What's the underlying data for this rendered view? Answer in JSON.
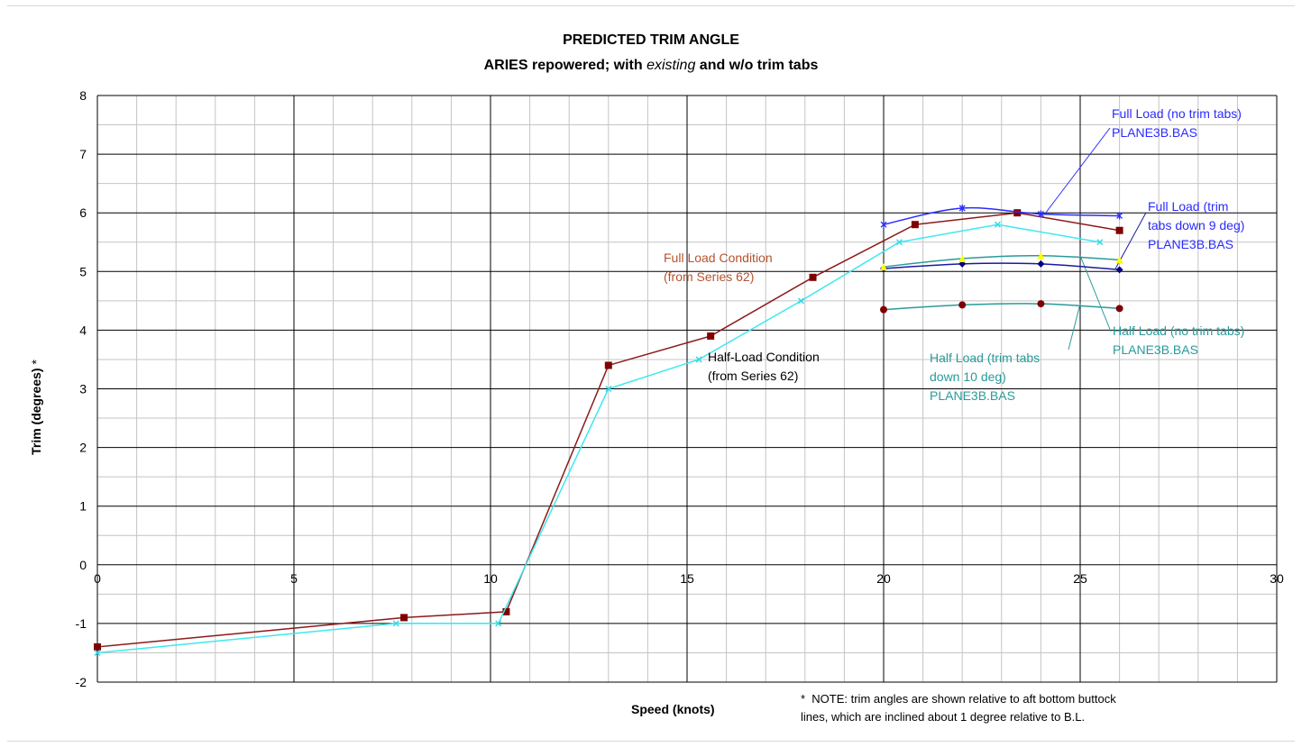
{
  "chart_data": {
    "type": "line",
    "title": "PREDICTED TRIM ANGLE",
    "subtitle": {
      "before": "ARIES repowered; with ",
      "italic": "existing",
      "after": " and w/o trim tabs"
    },
    "xlabel": "Speed (knots)",
    "ylabel": "Trim (degrees)",
    "ylabel_suffix": "*",
    "xlim": [
      0,
      30
    ],
    "ylim": [
      -2,
      8
    ],
    "xticks": [
      "0",
      "5",
      "10",
      "15",
      "20",
      "25",
      "30"
    ],
    "yticks": [
      "-2",
      "-1",
      "0",
      "1",
      "2",
      "3",
      "4",
      "5",
      "6",
      "7",
      "8"
    ],
    "grid": true,
    "note": "*  NOTE: trim angles are shown relative to aft bottom buttock\nlines, which are inclined about 1 degree relative to B.L.",
    "series": [
      {
        "key": "full_s62",
        "color": "#8b1a1a",
        "marker_color": "#800000",
        "marker": "square",
        "smooth": false,
        "x": [
          0,
          7.8,
          10.4,
          13.0,
          15.6,
          18.2,
          20.8,
          23.4,
          26.0
        ],
        "y": [
          -1.4,
          -0.9,
          -0.8,
          3.4,
          3.9,
          4.9,
          5.8,
          6.0,
          5.7
        ]
      },
      {
        "key": "half_s62",
        "color": "#3ee8f0",
        "marker_color": "#2fd9e6",
        "marker": "x",
        "smooth": false,
        "x": [
          0,
          7.6,
          10.2,
          13.0,
          15.3,
          17.9,
          20.4,
          22.9,
          25.5
        ],
        "y": [
          -1.5,
          -1.0,
          -1.0,
          3.0,
          3.5,
          4.5,
          5.5,
          5.8,
          5.5
        ]
      },
      {
        "key": "full_no_tabs",
        "color": "#2b2bff",
        "marker_color": "#2b2bff",
        "marker": "asterisk",
        "smooth": true,
        "x": [
          20,
          22,
          24,
          26
        ],
        "y": [
          5.8,
          6.08,
          5.98,
          5.95
        ]
      },
      {
        "key": "full_tabs9",
        "color": "#1a1aa0",
        "marker_color": "#000080",
        "marker": "diamond",
        "smooth": true,
        "x": [
          20,
          22,
          24,
          26
        ],
        "y": [
          5.05,
          5.13,
          5.13,
          5.03
        ]
      },
      {
        "key": "half_no_tabs",
        "color": "#2a9a9a",
        "marker_color": "#ffff00",
        "marker": "triangle",
        "smooth": true,
        "x": [
          20,
          22,
          24,
          26
        ],
        "y": [
          5.08,
          5.22,
          5.27,
          5.2
        ]
      },
      {
        "key": "half_tabs10",
        "color": "#2a9a9a",
        "marker_color": "#800000",
        "marker": "circle",
        "smooth": true,
        "x": [
          20,
          22,
          24,
          26
        ],
        "y": [
          4.35,
          4.43,
          4.45,
          4.37
        ]
      }
    ],
    "annotations": [
      {
        "key": "full_s62",
        "text": "Full Load Condition\n(from Series 62)",
        "color": "#b5532e"
      },
      {
        "key": "half_s62",
        "text": "Half-Load Condition\n(from Series 62)",
        "color": "#000000"
      },
      {
        "key": "full_no_tabs",
        "text": "Full Load (no trim tabs)\nPLANE3B.BAS",
        "color": "#2b2bff"
      },
      {
        "key": "full_tabs9",
        "text": "Full Load (trim\ntabs down 9 deg)\nPLANE3B.BAS",
        "color": "#2b2bff"
      },
      {
        "key": "half_no_tabs",
        "text": "Half Load (no trim tabs)\nPLANE3B.BAS",
        "color": "#2a9a9a"
      },
      {
        "key": "half_tabs10",
        "text": "Half Load (trim tabs\ndown 10 deg)\nPLANE3B.BAS",
        "color": "#2a9a9a"
      }
    ]
  }
}
